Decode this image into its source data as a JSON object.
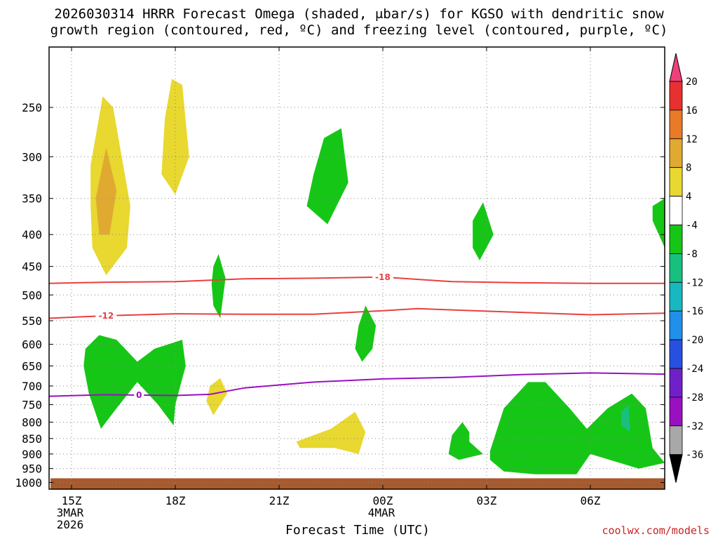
{
  "chart_data": {
    "type": "area",
    "title_line1": "2026030314 HRRR Forecast Omega (shaded, μbar/s) for KGSO with dendritic snow",
    "title_line2": "growth region (contoured, red, ºC) and freezing level (contoured, purple, ºC)",
    "xlabel": "Forecast Time (UTC)",
    "credit": "coolwx.com/models",
    "x_ticks": [
      {
        "hour": 15,
        "label": "15Z",
        "sub1": "3MAR",
        "sub2": "2026"
      },
      {
        "hour": 18,
        "label": "18Z",
        "sub1": "",
        "sub2": ""
      },
      {
        "hour": 21,
        "label": "21Z",
        "sub1": "",
        "sub2": ""
      },
      {
        "hour": 24,
        "label": "00Z",
        "sub1": "4MAR",
        "sub2": ""
      },
      {
        "hour": 27,
        "label": "03Z",
        "sub1": "",
        "sub2": ""
      },
      {
        "hour": 30,
        "label": "06Z",
        "sub1": "",
        "sub2": ""
      }
    ],
    "xlim": [
      14.35,
      32.15
    ],
    "y_ticks": [
      250,
      300,
      350,
      400,
      450,
      500,
      550,
      600,
      650,
      700,
      750,
      800,
      850,
      900,
      950,
      1000
    ],
    "ylim": [
      200,
      1025
    ],
    "y_scale": "log-pressure",
    "grid": true,
    "colorbar": {
      "labels": [
        "20",
        "16",
        "12",
        "8",
        "4",
        "-4",
        "-8",
        "-12",
        "-16",
        "-20",
        "-24",
        "-28",
        "-32",
        "-36"
      ],
      "colors": [
        "#f0407a",
        "#e83030",
        "#e87a28",
        "#e0aa30",
        "#e8d830",
        "#ffffff",
        "#16c616",
        "#18c080",
        "#18b8c0",
        "#2090e8",
        "#2850e0",
        "#7020c8",
        "#9a10c0",
        "#a8a8a8",
        "#000000"
      ]
    },
    "series": [
      {
        "name": "-18",
        "color": "#e84040",
        "kind": "dendritic",
        "label_at_hour": 24.0,
        "points": [
          [
            14.35,
            479
          ],
          [
            16,
            477
          ],
          [
            18,
            476
          ],
          [
            20,
            471
          ],
          [
            22,
            470
          ],
          [
            24,
            468
          ],
          [
            26,
            476
          ],
          [
            28,
            478
          ],
          [
            30,
            479
          ],
          [
            32.15,
            479
          ]
        ]
      },
      {
        "name": "-12",
        "color": "#e84040",
        "kind": "dendritic",
        "label_at_hour": 16.0,
        "points": [
          [
            14.35,
            545
          ],
          [
            16,
            540
          ],
          [
            18,
            536
          ],
          [
            20,
            537
          ],
          [
            22,
            537
          ],
          [
            24,
            530
          ],
          [
            25,
            526
          ],
          [
            27,
            531
          ],
          [
            30,
            538
          ],
          [
            32.15,
            535
          ]
        ]
      },
      {
        "name": "0",
        "color": "#9a10c0",
        "kind": "freezing",
        "label_at_hour": 16.95,
        "points": [
          [
            14.35,
            727
          ],
          [
            16,
            723
          ],
          [
            17,
            724
          ],
          [
            18,
            725
          ],
          [
            19,
            722
          ],
          [
            20,
            705
          ],
          [
            22,
            690
          ],
          [
            24,
            682
          ],
          [
            26,
            678
          ],
          [
            28,
            671
          ],
          [
            30,
            667
          ],
          [
            32.15,
            670
          ]
        ]
      }
    ],
    "omega_regions": [
      {
        "color": "#e8d830",
        "points": [
          [
            15.55,
            310
          ],
          [
            15.9,
            240
          ],
          [
            16.2,
            250
          ],
          [
            16.7,
            360
          ],
          [
            16.6,
            420
          ],
          [
            16.0,
            465
          ],
          [
            15.6,
            420
          ],
          [
            15.55,
            360
          ]
        ]
      },
      {
        "color": "#e0aa30",
        "points": [
          [
            15.7,
            350
          ],
          [
            16.0,
            290
          ],
          [
            16.3,
            340
          ],
          [
            16.1,
            400
          ],
          [
            15.8,
            400
          ]
        ]
      },
      {
        "color": "#e8d830",
        "points": [
          [
            17.7,
            260
          ],
          [
            17.9,
            225
          ],
          [
            18.2,
            230
          ],
          [
            18.4,
            300
          ],
          [
            18.0,
            345
          ],
          [
            17.6,
            320
          ]
        ]
      },
      {
        "color": "#16c616",
        "points": [
          [
            22.3,
            280
          ],
          [
            22.8,
            270
          ],
          [
            23.0,
            330
          ],
          [
            22.4,
            385
          ],
          [
            21.8,
            360
          ],
          [
            22.0,
            320
          ]
        ]
      },
      {
        "color": "#16c616",
        "points": [
          [
            26.6,
            380
          ],
          [
            26.9,
            355
          ],
          [
            27.2,
            400
          ],
          [
            26.8,
            440
          ],
          [
            26.6,
            420
          ]
        ]
      },
      {
        "color": "#16c616",
        "points": [
          [
            31.8,
            360
          ],
          [
            32.15,
            350
          ],
          [
            32.15,
            420
          ],
          [
            31.8,
            380
          ]
        ]
      },
      {
        "color": "#16c616",
        "points": [
          [
            19.1,
            450
          ],
          [
            19.25,
            430
          ],
          [
            19.45,
            470
          ],
          [
            19.3,
            545
          ],
          [
            19.1,
            520
          ],
          [
            19.05,
            480
          ]
        ]
      },
      {
        "color": "#16c616",
        "points": [
          [
            23.3,
            560
          ],
          [
            23.5,
            520
          ],
          [
            23.8,
            560
          ],
          [
            23.7,
            610
          ],
          [
            23.4,
            640
          ],
          [
            23.2,
            610
          ]
        ]
      },
      {
        "color": "#16c616",
        "points": [
          [
            15.4,
            610
          ],
          [
            15.8,
            580
          ],
          [
            16.3,
            590
          ],
          [
            16.9,
            640
          ],
          [
            17.4,
            610
          ],
          [
            18.2,
            590
          ],
          [
            18.3,
            650
          ],
          [
            18.0,
            750
          ],
          [
            17.95,
            810
          ],
          [
            17.5,
            750
          ],
          [
            16.9,
            690
          ],
          [
            16.3,
            760
          ],
          [
            15.85,
            820
          ],
          [
            15.5,
            720
          ],
          [
            15.35,
            650
          ]
        ]
      },
      {
        "color": "#e8d830",
        "points": [
          [
            19.0,
            700
          ],
          [
            19.3,
            680
          ],
          [
            19.5,
            720
          ],
          [
            19.1,
            780
          ],
          [
            18.9,
            740
          ]
        ]
      },
      {
        "color": "#e8d830",
        "points": [
          [
            21.5,
            860
          ],
          [
            22.5,
            820
          ],
          [
            23.2,
            770
          ],
          [
            23.5,
            830
          ],
          [
            23.3,
            900
          ],
          [
            22.6,
            880
          ],
          [
            21.6,
            880
          ]
        ]
      },
      {
        "color": "#16c616",
        "points": [
          [
            26.0,
            840
          ],
          [
            26.3,
            800
          ],
          [
            26.5,
            830
          ],
          [
            26.5,
            860
          ],
          [
            26.9,
            900
          ],
          [
            26.2,
            920
          ],
          [
            25.9,
            900
          ]
        ]
      },
      {
        "color": "#16c616",
        "points": [
          [
            27.5,
            760
          ],
          [
            28.2,
            690
          ],
          [
            28.7,
            690
          ],
          [
            29.4,
            760
          ],
          [
            29.9,
            820
          ],
          [
            30.5,
            760
          ],
          [
            31.2,
            720
          ],
          [
            31.6,
            760
          ],
          [
            31.8,
            880
          ],
          [
            32.15,
            930
          ],
          [
            31.4,
            950
          ],
          [
            30.0,
            900
          ],
          [
            29.6,
            970
          ],
          [
            28.4,
            970
          ],
          [
            27.5,
            960
          ],
          [
            27.1,
            920
          ],
          [
            27.1,
            890
          ]
        ]
      },
      {
        "color": "#18c080",
        "points": [
          [
            30.9,
            770
          ],
          [
            31.1,
            750
          ],
          [
            31.15,
            830
          ],
          [
            30.9,
            810
          ]
        ]
      }
    ],
    "terrain_color": "#a85a2c"
  }
}
